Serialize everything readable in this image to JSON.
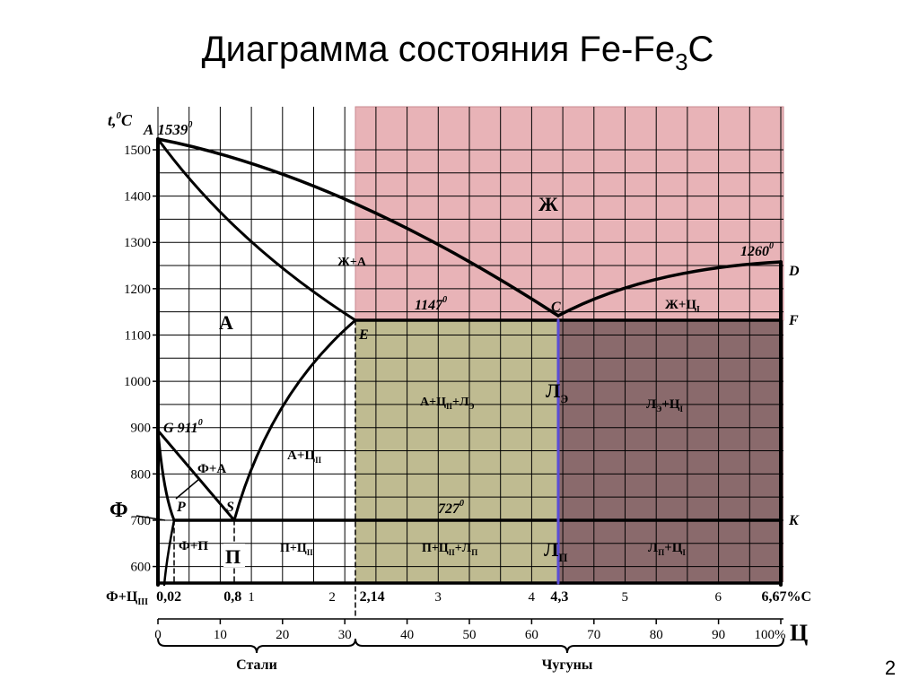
{
  "slide": {
    "title": "Диаграмма состояния Fe-Fe",
    "title_sub": "3",
    "title_end": "C",
    "page_number": "2"
  },
  "chart_data": {
    "type": "phase-diagram",
    "ylabel_main": "t,",
    "ylabel_sup": "0",
    "ylabel_end": "C",
    "yticks": [
      "1500",
      "1400",
      "1300",
      "1200",
      "1100",
      "1000",
      "900",
      "800",
      "700",
      "600"
    ],
    "ytick_values": [
      1500,
      1400,
      1300,
      1200,
      1100,
      1000,
      900,
      800,
      700,
      600
    ],
    "carbon_axis": {
      "ticks": [
        {
          "label": "0,02",
          "c": 0.02
        },
        {
          "label": "0,8",
          "c": 0.8
        },
        {
          "label": "1",
          "c": 1
        },
        {
          "label": "2",
          "c": 2
        },
        {
          "label": "2,14",
          "c": 2.14
        },
        {
          "label": "3",
          "c": 3
        },
        {
          "label": "4",
          "c": 4
        },
        {
          "label": "4,3",
          "c": 4.3
        },
        {
          "label": "5",
          "c": 5
        },
        {
          "label": "6",
          "c": 6
        },
        {
          "label": "6,67%C",
          "c": 6.67
        }
      ],
      "left_label": "Ф+Ц",
      "left_label_sub": "III"
    },
    "cementite_axis": {
      "ticks": [
        "0",
        "10",
        "20",
        "30",
        "40",
        "50",
        "60",
        "70",
        "80",
        "90",
        "100%"
      ],
      "tick_values": [
        0,
        10,
        20,
        30,
        40,
        50,
        60,
        70,
        80,
        90,
        100
      ],
      "label": "Ц"
    },
    "groups": {
      "steels": "Стали",
      "cast_irons": "Чугуны"
    },
    "points": {
      "A": {
        "label": "A",
        "temp": "1539",
        "sup": "0"
      },
      "G": {
        "label": "G",
        "temp": "911",
        "sup": "0"
      },
      "P": "P",
      "S": "S",
      "E": "E",
      "C": "C",
      "D": "D",
      "F": "F",
      "K": "K",
      "t1260": {
        "temp": "1260",
        "sup": "0"
      },
      "t1147": {
        "temp": "1147",
        "sup": "0"
      },
      "t727": {
        "temp": "727",
        "sup": "0"
      }
    },
    "regions": {
      "liquid": "Ж",
      "liquid_austenite": "Ж+А",
      "austenite": "А",
      "liquid_cementite": {
        "main": "Ж+Ц",
        "sub": "I"
      },
      "austenite_cem2_led": {
        "main": "А+Ц",
        "sub": "II",
        "tail": "+Л",
        "tail_sub": "Э"
      },
      "led_cem1_upper": {
        "main": "Л",
        "sub": "Э",
        "tail": "+Ц",
        "tail_sub": "I"
      },
      "led_e": {
        "main": "Л",
        "sub": "Э"
      },
      "austenite_cem2": {
        "main": "А+Ц",
        "sub": "II"
      },
      "ferrite_austenite": "Ф+А",
      "ferrite": "Ф",
      "ferrite_pearlite": "Ф+П",
      "pearlite": "П",
      "pearlite_cem2": {
        "main": "П+Ц",
        "sub": "II"
      },
      "pearlite_cem2_led": {
        "main": "П+Ц",
        "sub": "II",
        "tail": "+Л",
        "tail_sub": "П"
      },
      "led_p": {
        "main": "Л",
        "sub": "П"
      },
      "led_p_cem1": {
        "main": "Л",
        "sub": "П",
        "tail": "+Ц",
        "tail_sub": "I"
      }
    },
    "region_colors": {
      "liquid": "#e8b3b7",
      "hypoeutectic": "#bfbb91",
      "hypereutectic": "#8a6a6c",
      "eutectic_line": "#5a4cd6"
    }
  }
}
